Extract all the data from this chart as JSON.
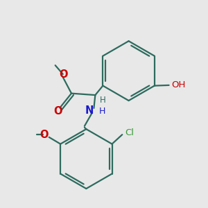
{
  "bg": "#e8e8e8",
  "rc": "#2d6b5e",
  "oc": "#cc0000",
  "nc": "#1a1acc",
  "clc": "#3a9a3a",
  "lw": 1.6,
  "dbo": 0.013,
  "figsize": [
    3.0,
    3.0
  ],
  "dpi": 100,
  "xlim": [
    -0.1,
    1.1
  ],
  "ylim": [
    -0.05,
    1.1
  ]
}
